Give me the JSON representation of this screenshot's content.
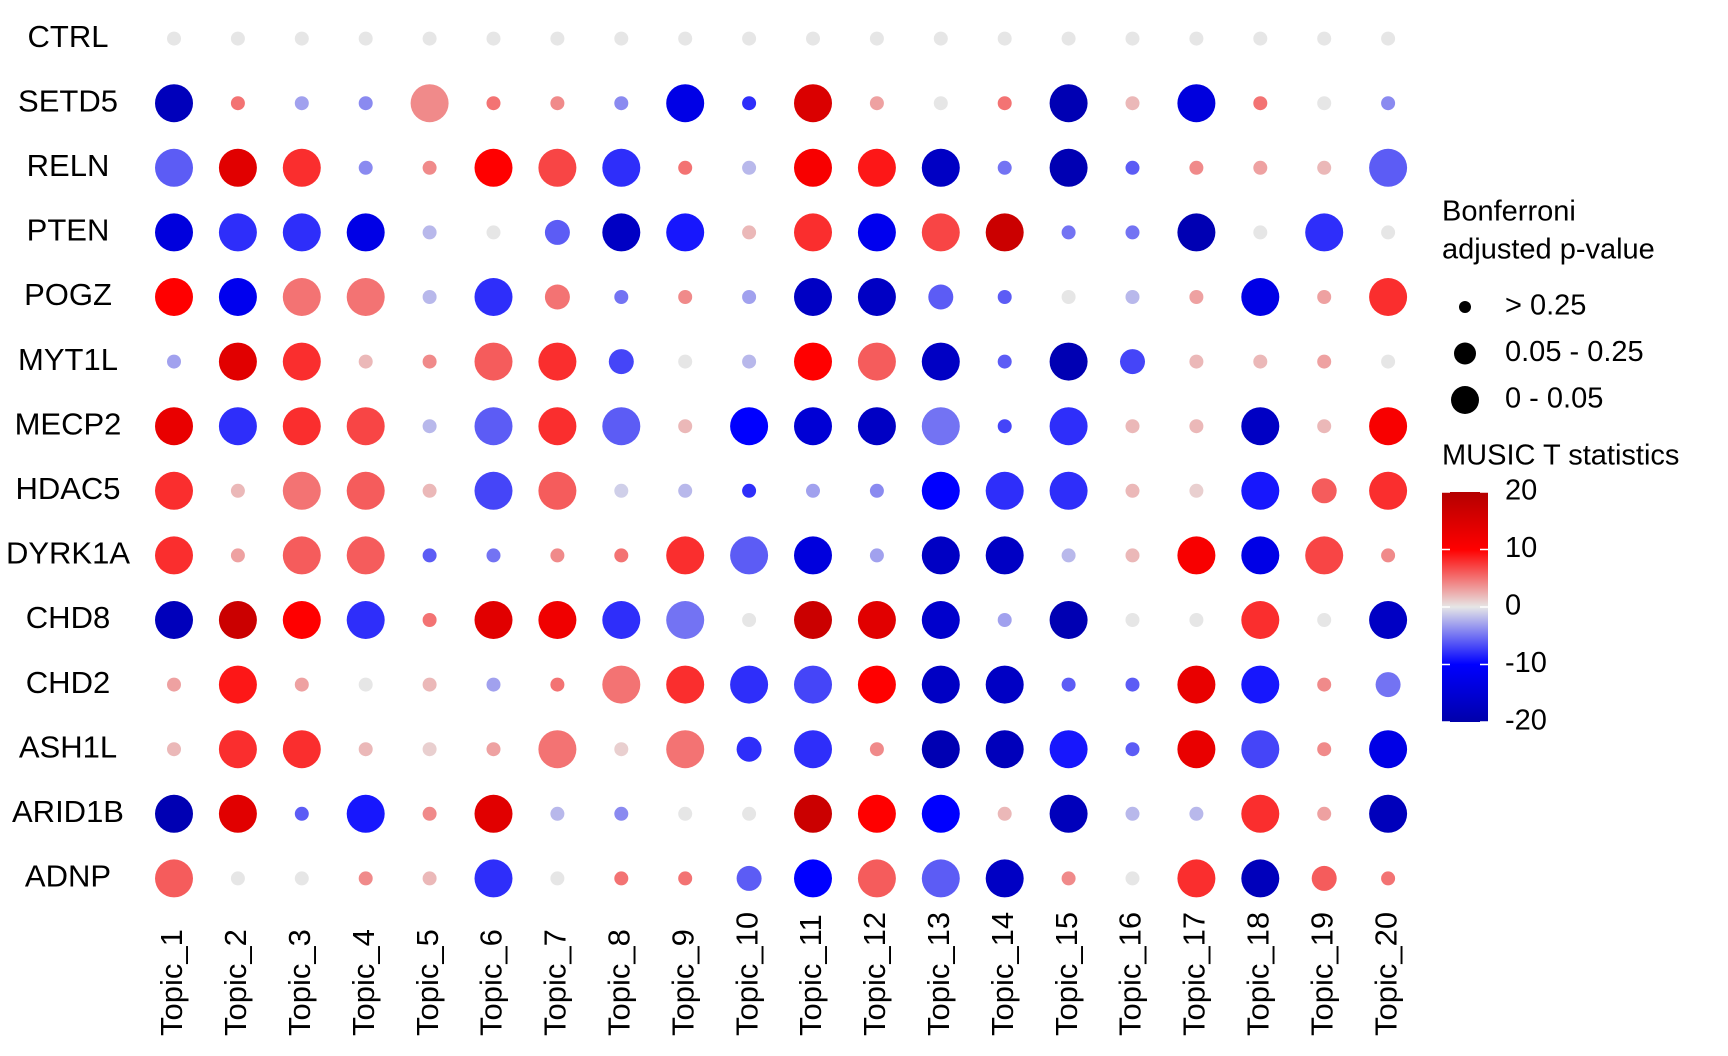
{
  "chart_data": {
    "type": "dotplot",
    "x_categories": [
      "Topic_1",
      "Topic_2",
      "Topic_3",
      "Topic_4",
      "Topic_5",
      "Topic_6",
      "Topic_7",
      "Topic_8",
      "Topic_9",
      "Topic_10",
      "Topic_11",
      "Topic_12",
      "Topic_13",
      "Topic_14",
      "Topic_15",
      "Topic_16",
      "Topic_17",
      "Topic_18",
      "Topic_19",
      "Topic_20"
    ],
    "size_legend_title": [
      "Bonferroni",
      "adjusted p-value"
    ],
    "size_levels": [
      "> 0.25",
      "0.05 - 0.25",
      "0 - 0.05"
    ],
    "color_legend_title": "MUSIC T statistics",
    "clim": [
      -20,
      20
    ],
    "cticks": [
      -20,
      -10,
      0,
      10,
      20
    ],
    "colormap": [
      "#0000aa",
      "#0000ff",
      "#e6e6e6",
      "#ff0000",
      "#b40000"
    ],
    "series": [
      {
        "name": "CTRL",
        "values": [
          0,
          0,
          0,
          0,
          0,
          0,
          0,
          0,
          0,
          0,
          0,
          0,
          0,
          0,
          0,
          0,
          0,
          0,
          0,
          0
        ],
        "sizes": [
          "> 0.25",
          "> 0.25",
          "> 0.25",
          "> 0.25",
          "> 0.25",
          "> 0.25",
          "> 0.25",
          "> 0.25",
          "> 0.25",
          "> 0.25",
          "> 0.25",
          "> 0.25",
          "> 0.25",
          "> 0.25",
          "> 0.25",
          "> 0.25",
          "> 0.25",
          "> 0.25",
          "> 0.25",
          "> 0.25"
        ]
      },
      {
        "name": "SETD5",
        "values": [
          -18,
          5,
          -3,
          -4,
          4,
          5,
          4,
          -4,
          -13,
          -8,
          15,
          3,
          0,
          5,
          -19,
          2,
          -14,
          5,
          0,
          -4
        ],
        "sizes": [
          "0 - 0.05",
          "> 0.25",
          "> 0.25",
          "> 0.25",
          "0 - 0.05",
          "> 0.25",
          "> 0.25",
          "> 0.25",
          "0 - 0.05",
          "> 0.25",
          "0 - 0.05",
          "> 0.25",
          "> 0.25",
          "> 0.25",
          "0 - 0.05",
          "> 0.25",
          "0 - 0.05",
          "> 0.25",
          "> 0.25",
          "> 0.25"
        ]
      },
      {
        "name": "RELN",
        "values": [
          -6,
          14,
          8,
          -4,
          4,
          10,
          7,
          -8,
          5,
          -2,
          11,
          9,
          -17,
          -5,
          -19,
          -6,
          4,
          3,
          2,
          -6
        ],
        "sizes": [
          "0 - 0.05",
          "0 - 0.05",
          "0 - 0.05",
          "> 0.25",
          "> 0.25",
          "0 - 0.05",
          "0 - 0.05",
          "0 - 0.05",
          "> 0.25",
          "> 0.25",
          "0 - 0.05",
          "0 - 0.05",
          "0 - 0.05",
          "> 0.25",
          "0 - 0.05",
          "> 0.25",
          "> 0.25",
          "> 0.25",
          "> 0.25",
          "0 - 0.05"
        ]
      },
      {
        "name": "PTEN",
        "values": [
          -14,
          -8,
          -8,
          -13,
          -2,
          0,
          -6,
          -17,
          -9,
          2,
          8,
          -12,
          7,
          17,
          -5,
          -5,
          -19,
          0,
          -8,
          0
        ],
        "sizes": [
          "0 - 0.05",
          "0 - 0.05",
          "0 - 0.05",
          "0 - 0.05",
          "> 0.25",
          "> 0.25",
          "0.05 - 0.25",
          "0 - 0.05",
          "0 - 0.05",
          "> 0.25",
          "0 - 0.05",
          "0 - 0.05",
          "0 - 0.05",
          "0 - 0.05",
          "> 0.25",
          "> 0.25",
          "0 - 0.05",
          "> 0.25",
          "0 - 0.05",
          "> 0.25"
        ]
      },
      {
        "name": "POGZ",
        "values": [
          10,
          -12,
          5,
          5,
          -2,
          -8,
          5,
          -5,
          4,
          -3,
          -17,
          -17,
          -6,
          -6,
          0,
          -2,
          3,
          -13,
          3,
          8
        ],
        "sizes": [
          "0 - 0.05",
          "0 - 0.05",
          "0 - 0.05",
          "0 - 0.05",
          "> 0.25",
          "0 - 0.05",
          "0.05 - 0.25",
          "> 0.25",
          "> 0.25",
          "> 0.25",
          "0 - 0.05",
          "0 - 0.05",
          "0.05 - 0.25",
          "> 0.25",
          "> 0.25",
          "> 0.25",
          "> 0.25",
          "0 - 0.05",
          "> 0.25",
          "0 - 0.05"
        ]
      },
      {
        "name": "MYT1L",
        "values": [
          -3,
          14,
          8,
          2,
          4,
          6,
          8,
          -7,
          0,
          -2,
          10,
          6,
          -17,
          -6,
          -19,
          -7,
          2,
          2,
          3,
          0
        ],
        "sizes": [
          "> 0.25",
          "0 - 0.05",
          "0 - 0.05",
          "> 0.25",
          "> 0.25",
          "0 - 0.05",
          "0 - 0.05",
          "0.05 - 0.25",
          "> 0.25",
          "> 0.25",
          "0 - 0.05",
          "0 - 0.05",
          "0 - 0.05",
          "> 0.25",
          "0 - 0.05",
          "0.05 - 0.25",
          "> 0.25",
          "> 0.25",
          "> 0.25",
          "> 0.25"
        ]
      },
      {
        "name": "MECP2",
        "values": [
          13,
          -8,
          8,
          7,
          -2,
          -6,
          8,
          -6,
          2,
          -10,
          -15,
          -17,
          -5,
          -7,
          -8,
          2,
          2,
          -17,
          2,
          11
        ],
        "sizes": [
          "0 - 0.05",
          "0 - 0.05",
          "0 - 0.05",
          "0 - 0.05",
          "> 0.25",
          "0 - 0.05",
          "0 - 0.05",
          "0 - 0.05",
          "> 0.25",
          "0 - 0.05",
          "0 - 0.05",
          "0 - 0.05",
          "0 - 0.05",
          "> 0.25",
          "0 - 0.05",
          "> 0.25",
          "> 0.25",
          "0 - 0.05",
          "> 0.25",
          "0 - 0.05"
        ]
      },
      {
        "name": "HDAC5",
        "values": [
          8,
          2,
          5,
          6,
          2,
          -7,
          6,
          -1,
          -2,
          -8,
          -3,
          -4,
          -10,
          -8,
          -8,
          2,
          1,
          -9,
          6,
          8
        ],
        "sizes": [
          "0 - 0.05",
          "> 0.25",
          "0 - 0.05",
          "0 - 0.05",
          "> 0.25",
          "0 - 0.05",
          "0 - 0.05",
          "> 0.25",
          "> 0.25",
          "> 0.25",
          "> 0.25",
          "> 0.25",
          "0 - 0.05",
          "0 - 0.05",
          "0 - 0.05",
          "> 0.25",
          "> 0.25",
          "0 - 0.05",
          "0.05 - 0.25",
          "0 - 0.05"
        ]
      },
      {
        "name": "DYRK1A",
        "values": [
          8,
          3,
          6,
          6,
          -6,
          -5,
          4,
          5,
          8,
          -6,
          -14,
          -3,
          -17,
          -17,
          -2,
          2,
          11,
          -13,
          7,
          4
        ],
        "sizes": [
          "0 - 0.05",
          "> 0.25",
          "0 - 0.05",
          "0 - 0.05",
          "> 0.25",
          "> 0.25",
          "> 0.25",
          "> 0.25",
          "0 - 0.05",
          "0 - 0.05",
          "0 - 0.05",
          "> 0.25",
          "0 - 0.05",
          "0 - 0.05",
          "> 0.25",
          "> 0.25",
          "0 - 0.05",
          "0 - 0.05",
          "0 - 0.05",
          "> 0.25"
        ]
      },
      {
        "name": "CHD8",
        "values": [
          -18,
          17,
          10,
          -8,
          5,
          14,
          12,
          -8,
          -5,
          0,
          17,
          14,
          -16,
          -3,
          -19,
          0,
          0,
          8,
          0,
          -17
        ],
        "sizes": [
          "0 - 0.05",
          "0 - 0.05",
          "0 - 0.05",
          "0 - 0.05",
          "> 0.25",
          "0 - 0.05",
          "0 - 0.05",
          "0 - 0.05",
          "0 - 0.05",
          "> 0.25",
          "0 - 0.05",
          "0 - 0.05",
          "0 - 0.05",
          "> 0.25",
          "0 - 0.05",
          "> 0.25",
          "> 0.25",
          "0 - 0.05",
          "> 0.25",
          "0 - 0.05"
        ]
      },
      {
        "name": "CHD2",
        "values": [
          3,
          9,
          3,
          0,
          2,
          -3,
          5,
          5,
          8,
          -8,
          -7,
          10,
          -17,
          -17,
          -6,
          -6,
          13,
          -9,
          4,
          -5
        ],
        "sizes": [
          "> 0.25",
          "0 - 0.05",
          "> 0.25",
          "> 0.25",
          "> 0.25",
          "> 0.25",
          "> 0.25",
          "0 - 0.05",
          "0 - 0.05",
          "0 - 0.05",
          "0 - 0.05",
          "0 - 0.05",
          "0 - 0.05",
          "0 - 0.05",
          "> 0.25",
          "> 0.25",
          "0 - 0.05",
          "0 - 0.05",
          "> 0.25",
          "0.05 - 0.25"
        ]
      },
      {
        "name": "ASH1L",
        "values": [
          2,
          8,
          8,
          2,
          1,
          3,
          5,
          1,
          5,
          -8,
          -8,
          4,
          -19,
          -18,
          -9,
          -6,
          13,
          -7,
          4,
          -13
        ],
        "sizes": [
          "> 0.25",
          "0 - 0.05",
          "0 - 0.05",
          "> 0.25",
          "> 0.25",
          "> 0.25",
          "0 - 0.05",
          "> 0.25",
          "0 - 0.05",
          "0.05 - 0.25",
          "0 - 0.05",
          "> 0.25",
          "0 - 0.05",
          "0 - 0.05",
          "0 - 0.05",
          "> 0.25",
          "0 - 0.05",
          "0 - 0.05",
          "> 0.25",
          "0 - 0.05"
        ]
      },
      {
        "name": "ARID1B",
        "values": [
          -19,
          14,
          -6,
          -9,
          4,
          14,
          -2,
          -4,
          0,
          0,
          17,
          10,
          -10,
          2,
          -18,
          -2,
          -2,
          8,
          3,
          -18
        ],
        "sizes": [
          "0 - 0.05",
          "0 - 0.05",
          "> 0.25",
          "0 - 0.05",
          "> 0.25",
          "0 - 0.05",
          "> 0.25",
          "> 0.25",
          "> 0.25",
          "> 0.25",
          "0 - 0.05",
          "0 - 0.05",
          "0 - 0.05",
          "> 0.25",
          "0 - 0.05",
          "> 0.25",
          "> 0.25",
          "0 - 0.05",
          "> 0.25",
          "0 - 0.05"
        ]
      },
      {
        "name": "ADNP",
        "values": [
          6,
          0,
          0,
          4,
          2,
          -8,
          0,
          5,
          5,
          -6,
          -10,
          6,
          -6,
          -17,
          4,
          0,
          8,
          -18,
          6,
          5
        ],
        "sizes": [
          "0 - 0.05",
          "> 0.25",
          "> 0.25",
          "> 0.25",
          "> 0.25",
          "0 - 0.05",
          "> 0.25",
          "> 0.25",
          "> 0.25",
          "0.05 - 0.25",
          "0 - 0.05",
          "0 - 0.05",
          "0 - 0.05",
          "0 - 0.05",
          "> 0.25",
          "> 0.25",
          "0 - 0.05",
          "0 - 0.05",
          "0.05 - 0.25",
          "> 0.25"
        ]
      }
    ]
  }
}
